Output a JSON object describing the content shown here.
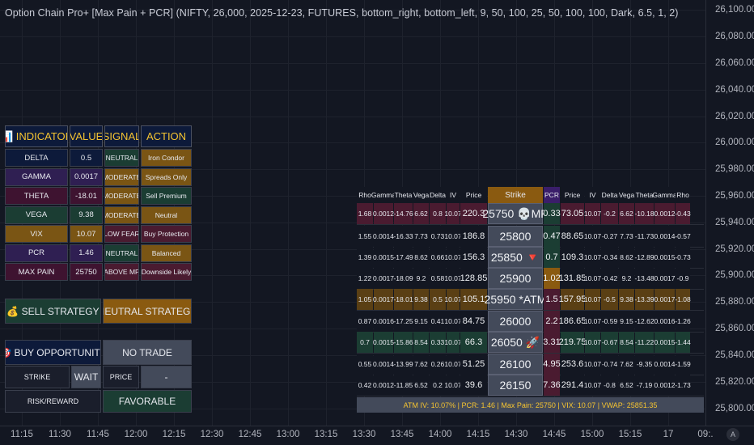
{
  "title": "Option Chain Pro+ [Max Pain + PCR] (NIFTY, 26,000, 2025-12-23, FUTURES, bottom_right, bottom_left, 9, 50, 100, 25, 50, 100, 100, Dark, 6.5, 1, 2)",
  "price_axis": [
    "26,100.00",
    "26,080.00",
    "26,060.00",
    "26,040.00",
    "26,020.00",
    "26,000.00",
    "25,980.00",
    "25,960.00",
    "25,940.00",
    "25,920.00",
    "25,900.00",
    "25,880.00",
    "25,860.00",
    "25,840.00",
    "25,820.00",
    "25,800.00"
  ],
  "time_axis": [
    "11:15",
    "11:30",
    "11:45",
    "12:00",
    "12:15",
    "12:30",
    "12:45",
    "13:00",
    "13:15",
    "13:30",
    "13:45",
    "14:00",
    "14:15",
    "14:30",
    "14:45",
    "15:00",
    "15:15",
    "17",
    "09:."
  ],
  "auto_scale_label": "A",
  "indicator_table": {
    "headers": {
      "indicator": "📊 INDICATOR",
      "value": "VALUE",
      "signal": "SIGNAL",
      "action": "ACTION"
    },
    "rows": [
      {
        "name": "DELTA",
        "value": "0.5",
        "signal": "NEUTRAL",
        "action": "Iron Condor"
      },
      {
        "name": "GAMMA",
        "value": "0.0017",
        "signal": "MODERATE",
        "action": "Spreads Only"
      },
      {
        "name": "THETA",
        "value": "-18.01",
        "signal": "MODERATE",
        "action": "Sell Premium"
      },
      {
        "name": "VEGA",
        "value": "9.38",
        "signal": "MODERATE",
        "action": "Neutral"
      },
      {
        "name": "VIX",
        "value": "10.07",
        "signal": "LOW FEAR",
        "action": "Buy Protection"
      },
      {
        "name": "PCR",
        "value": "1.46",
        "signal": "NEUTRAL",
        "action": "Balanced"
      },
      {
        "name": "MAX PAIN",
        "value": "25750",
        "signal": "ABOVE MP",
        "action": "Downside Likely"
      }
    ],
    "sell_strategy": "💰 SELL STRATEGY",
    "neutral_strategy": "NEUTRAL STRATEGY",
    "buy_opportunity": "🎯 BUY OPPORTUNITY",
    "no_trade": "NO TRADE",
    "strike_label": "STRIKE",
    "strike_value": "WAIT",
    "price_label": "PRICE",
    "price_value": "-",
    "risk_reward_label": "RISK/REWARD",
    "risk_reward_value": "FAVORABLE"
  },
  "option_chain": {
    "headers": [
      "Rho",
      "Gamma",
      "Theta",
      "Vega",
      "Delta",
      "IV",
      "Price",
      "Strike",
      "PCR",
      "Price",
      "IV",
      "Delta",
      "Vega",
      "Theta",
      "Gamma",
      "Rho"
    ],
    "rows": [
      {
        "call": [
          "1.68",
          "0.0012",
          "-14.76",
          "6.62",
          "0.8",
          "10.07",
          "220.3"
        ],
        "strike": "25750 💀MP",
        "pcr": "0.33",
        "put": [
          "73.05",
          "10.07",
          "-0.2",
          "6.62",
          "-10.18",
          "0.0012",
          "-0.43"
        ]
      },
      {
        "call": [
          "1.55",
          "0.0014",
          "-16.33",
          "7.73",
          "0.73",
          "10.07",
          "186.8"
        ],
        "strike": "25800",
        "pcr": "0.47",
        "put": [
          "88.65",
          "10.07",
          "-0.27",
          "7.73",
          "-11.73",
          "0.0014",
          "-0.57"
        ]
      },
      {
        "call": [
          "1.39",
          "0.0015",
          "-17.49",
          "8.62",
          "0.66",
          "10.07",
          "156.3"
        ],
        "strike": "25850 🔻",
        "pcr": "0.7",
        "put": [
          "109.3",
          "10.07",
          "-0.34",
          "8.62",
          "-12.89",
          "0.0015",
          "-0.73"
        ]
      },
      {
        "call": [
          "1.22",
          "0.0017",
          "-18.09",
          "9.2",
          "0.58",
          "10.07",
          "128.85"
        ],
        "strike": "25900",
        "pcr": "1.02",
        "put": [
          "131.85",
          "10.07",
          "-0.42",
          "9.2",
          "-13.48",
          "0.0017",
          "-0.9"
        ]
      },
      {
        "call": [
          "1.05",
          "0.0017",
          "-18.01",
          "9.38",
          "0.5",
          "10.07",
          "105.1"
        ],
        "strike": "25950 *ATM",
        "pcr": "1.5",
        "put": [
          "157.95",
          "10.07",
          "-0.5",
          "9.38",
          "-13.39",
          "0.0017",
          "-1.08"
        ]
      },
      {
        "call": [
          "0.87",
          "0.0016",
          "-17.25",
          "9.15",
          "0.41",
          "10.07",
          "84.75"
        ],
        "strike": "26000",
        "pcr": "2.2",
        "put": [
          "186.65",
          "10.07",
          "-0.59",
          "9.15",
          "-12.62",
          "0.0016",
          "-1.26"
        ]
      },
      {
        "call": [
          "0.7",
          "0.0015",
          "-15.86",
          "8.54",
          "0.33",
          "10.07",
          "66.3"
        ],
        "strike": "26050 🚀",
        "pcr": "3.31",
        "put": [
          "219.75",
          "10.07",
          "-0.67",
          "8.54",
          "-11.22",
          "0.0015",
          "-1.44"
        ]
      },
      {
        "call": [
          "0.55",
          "0.0014",
          "-13.99",
          "7.62",
          "0.26",
          "10.07",
          "51.25"
        ],
        "strike": "26100",
        "pcr": "4.95",
        "put": [
          "253.6",
          "10.07",
          "-0.74",
          "7.62",
          "-9.35",
          "0.0014",
          "-1.59"
        ]
      },
      {
        "call": [
          "0.42",
          "0.0012",
          "-11.85",
          "6.52",
          "0.2",
          "10.07",
          "39.6"
        ],
        "strike": "26150",
        "pcr": "7.36",
        "put": [
          "291.4",
          "10.07",
          "-0.8",
          "6.52",
          "-7.19",
          "0.0012",
          "-1.73"
        ]
      }
    ],
    "footer": "ATM IV: 10.07% | PCR: 1.46 | Max Pain: 25750 | VIX: 10.07 | VWAP: 25851.35"
  },
  "colors": {
    "bg": "#131722",
    "navy": "#0d1a3a",
    "orange": "#8a5a10",
    "green": "#1f4d3a",
    "maroon": "#4a1228",
    "purple": "#3a1e6a",
    "gold": "#f5c431"
  }
}
